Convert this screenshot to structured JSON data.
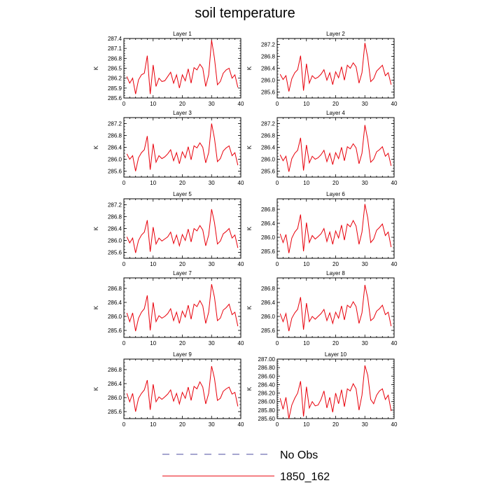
{
  "title": "soil temperature",
  "legend": [
    {
      "label": "No Obs",
      "style": "dashed",
      "color": "#4d4d9f"
    },
    {
      "label": "1850_162",
      "style": "solid",
      "color": "#e8000b"
    }
  ],
  "chart_data": [
    {
      "type": "line",
      "title": "Layer 1",
      "xlabel": "",
      "ylabel": "K",
      "xlim": [
        0,
        40
      ],
      "ylim": [
        285.6,
        287.4
      ],
      "xticks": [
        0,
        10,
        20,
        30,
        40
      ],
      "yticks": [
        "285.6",
        "285.9",
        "286.2",
        "286.5",
        "286.8",
        "287.1",
        "287.4"
      ],
      "series": [
        {
          "color": "#e8000b",
          "x": [
            1,
            2,
            3,
            4,
            5,
            6,
            7,
            8,
            9,
            10,
            11,
            12,
            13,
            14,
            15,
            16,
            17,
            18,
            19,
            20,
            21,
            22,
            23,
            24,
            25,
            26,
            27,
            28,
            29,
            30,
            31,
            32,
            33,
            34,
            35,
            36,
            37,
            38,
            39
          ],
          "y": [
            286.25,
            286.05,
            286.2,
            285.72,
            286.15,
            286.3,
            286.35,
            286.88,
            285.72,
            286.6,
            285.95,
            286.2,
            286.1,
            286.12,
            286.25,
            286.38,
            286.05,
            286.3,
            285.9,
            286.3,
            286.12,
            286.48,
            286.05,
            286.52,
            286.45,
            286.62,
            286.5,
            285.95,
            286.3,
            287.35,
            286.8,
            286.0,
            286.1,
            286.35,
            286.45,
            286.5,
            286.2,
            286.3,
            285.92
          ]
        }
      ]
    },
    {
      "type": "line",
      "title": "Layer 2",
      "xlabel": "",
      "ylabel": "K",
      "xlim": [
        0,
        40
      ],
      "ylim": [
        285.4,
        287.4
      ],
      "xticks": [
        0,
        10,
        20,
        30,
        40
      ],
      "yticks": [
        "285.6",
        "286.0",
        "286.4",
        "286.8",
        "287.2"
      ],
      "series": [
        {
          "color": "#e8000b",
          "x": [
            1,
            2,
            3,
            4,
            5,
            6,
            7,
            8,
            9,
            10,
            11,
            12,
            13,
            14,
            15,
            16,
            17,
            18,
            19,
            20,
            21,
            22,
            23,
            24,
            25,
            26,
            27,
            28,
            29,
            30,
            31,
            32,
            33,
            34,
            35,
            36,
            37,
            38,
            39
          ],
          "y": [
            286.2,
            286.02,
            286.15,
            285.62,
            286.05,
            286.25,
            286.35,
            286.82,
            285.65,
            286.55,
            285.9,
            286.15,
            286.05,
            286.1,
            286.2,
            286.35,
            286.0,
            286.25,
            285.85,
            286.28,
            286.08,
            286.45,
            286.0,
            286.5,
            286.4,
            286.58,
            286.45,
            285.9,
            286.25,
            287.25,
            286.75,
            285.95,
            286.05,
            286.3,
            286.4,
            286.5,
            286.15,
            286.25,
            285.85
          ]
        }
      ]
    },
    {
      "type": "line",
      "title": "Layer 3",
      "xlabel": "",
      "ylabel": "K",
      "xlim": [
        0,
        40
      ],
      "ylim": [
        285.4,
        287.4
      ],
      "xticks": [
        0,
        10,
        20,
        30,
        40
      ],
      "yticks": [
        "285.6",
        "286.0",
        "286.4",
        "286.8",
        "287.2"
      ],
      "series": [
        {
          "color": "#e8000b",
          "x": [
            1,
            2,
            3,
            4,
            5,
            6,
            7,
            8,
            9,
            10,
            11,
            12,
            13,
            14,
            15,
            16,
            17,
            18,
            19,
            20,
            21,
            22,
            23,
            24,
            25,
            26,
            27,
            28,
            29,
            30,
            31,
            32,
            33,
            34,
            35,
            36,
            37,
            38,
            39
          ],
          "y": [
            286.18,
            286.0,
            286.12,
            285.6,
            286.05,
            286.22,
            286.32,
            286.78,
            285.65,
            286.52,
            285.9,
            286.12,
            286.02,
            286.08,
            286.18,
            286.32,
            285.95,
            286.22,
            285.85,
            286.25,
            286.05,
            286.42,
            285.98,
            286.45,
            286.38,
            286.55,
            286.4,
            285.88,
            286.22,
            287.2,
            286.7,
            285.92,
            286.02,
            286.28,
            286.38,
            286.45,
            286.12,
            286.22,
            285.8
          ]
        }
      ]
    },
    {
      "type": "line",
      "title": "Layer 4",
      "xlabel": "",
      "ylabel": "K",
      "xlim": [
        0,
        40
      ],
      "ylim": [
        285.4,
        287.4
      ],
      "xticks": [
        0,
        10,
        20,
        30,
        40
      ],
      "yticks": [
        "285.6",
        "286.0",
        "286.4",
        "286.8",
        "287.2"
      ],
      "series": [
        {
          "color": "#e8000b",
          "x": [
            1,
            2,
            3,
            4,
            5,
            6,
            7,
            8,
            9,
            10,
            11,
            12,
            13,
            14,
            15,
            16,
            17,
            18,
            19,
            20,
            21,
            22,
            23,
            24,
            25,
            26,
            27,
            28,
            29,
            30,
            31,
            32,
            33,
            34,
            35,
            36,
            37,
            38,
            39
          ],
          "y": [
            286.15,
            285.95,
            286.1,
            285.58,
            286.02,
            286.2,
            286.3,
            286.72,
            285.62,
            286.48,
            285.88,
            286.1,
            286.0,
            286.05,
            286.15,
            286.3,
            285.92,
            286.2,
            285.82,
            286.22,
            286.02,
            286.4,
            285.95,
            286.42,
            286.35,
            286.52,
            286.38,
            285.85,
            286.2,
            287.15,
            286.65,
            285.9,
            286.0,
            286.25,
            286.32,
            286.42,
            286.1,
            286.2,
            285.78
          ]
        }
      ]
    },
    {
      "type": "line",
      "title": "Layer 5",
      "xlabel": "",
      "ylabel": "K",
      "xlim": [
        0,
        40
      ],
      "ylim": [
        285.4,
        287.4
      ],
      "xticks": [
        0,
        10,
        20,
        30,
        40
      ],
      "yticks": [
        "285.6",
        "286.0",
        "286.4",
        "286.8",
        "287.2"
      ],
      "series": [
        {
          "color": "#e8000b",
          "x": [
            1,
            2,
            3,
            4,
            5,
            6,
            7,
            8,
            9,
            10,
            11,
            12,
            13,
            14,
            15,
            16,
            17,
            18,
            19,
            20,
            21,
            22,
            23,
            24,
            25,
            26,
            27,
            28,
            29,
            30,
            31,
            32,
            33,
            34,
            35,
            36,
            37,
            38,
            39
          ],
          "y": [
            286.12,
            285.92,
            286.08,
            285.58,
            286.0,
            286.18,
            286.28,
            286.68,
            285.62,
            286.45,
            285.88,
            286.08,
            285.98,
            286.05,
            286.12,
            286.28,
            285.9,
            286.18,
            285.82,
            286.2,
            286.0,
            286.38,
            285.95,
            286.4,
            286.32,
            286.5,
            286.35,
            285.82,
            286.18,
            287.05,
            286.6,
            285.88,
            285.98,
            286.22,
            286.3,
            286.4,
            286.08,
            286.18,
            285.75
          ]
        }
      ]
    },
    {
      "type": "line",
      "title": "Layer 6",
      "xlabel": "",
      "ylabel": "K",
      "xlim": [
        0,
        40
      ],
      "ylim": [
        285.4,
        287.1
      ],
      "xticks": [
        0,
        10,
        20,
        30,
        40
      ],
      "yticks": [
        "285.6",
        "286.0",
        "286.4",
        "286.8"
      ],
      "series": [
        {
          "color": "#e8000b",
          "x": [
            1,
            2,
            3,
            4,
            5,
            6,
            7,
            8,
            9,
            10,
            11,
            12,
            13,
            14,
            15,
            16,
            17,
            18,
            19,
            20,
            21,
            22,
            23,
            24,
            25,
            26,
            27,
            28,
            29,
            30,
            31,
            32,
            33,
            34,
            35,
            36,
            37,
            38,
            39
          ],
          "y": [
            286.1,
            285.85,
            286.08,
            285.55,
            285.98,
            286.15,
            286.25,
            286.65,
            285.6,
            286.42,
            285.85,
            286.05,
            285.95,
            286.02,
            286.1,
            286.25,
            285.88,
            286.15,
            285.8,
            286.18,
            285.98,
            286.35,
            285.92,
            286.38,
            286.3,
            286.48,
            286.32,
            285.8,
            286.15,
            286.95,
            286.55,
            285.85,
            285.95,
            286.2,
            286.28,
            286.38,
            286.05,
            286.15,
            285.72
          ]
        }
      ]
    },
    {
      "type": "line",
      "title": "Layer 7",
      "xlabel": "",
      "ylabel": "K",
      "xlim": [
        0,
        40
      ],
      "ylim": [
        285.4,
        287.1
      ],
      "xticks": [
        0,
        10,
        20,
        30,
        40
      ],
      "yticks": [
        "285.6",
        "286.0",
        "286.4",
        "286.8"
      ],
      "series": [
        {
          "color": "#e8000b",
          "x": [
            1,
            2,
            3,
            4,
            5,
            6,
            7,
            8,
            9,
            10,
            11,
            12,
            13,
            14,
            15,
            16,
            17,
            18,
            19,
            20,
            21,
            22,
            23,
            24,
            25,
            26,
            27,
            28,
            29,
            30,
            31,
            32,
            33,
            34,
            35,
            36,
            37,
            38,
            39
          ],
          "y": [
            286.1,
            285.85,
            286.1,
            285.58,
            285.95,
            286.12,
            286.22,
            286.6,
            285.6,
            286.4,
            285.85,
            286.02,
            285.95,
            286.0,
            286.08,
            286.22,
            285.88,
            286.12,
            285.8,
            286.15,
            285.98,
            286.32,
            285.92,
            286.35,
            286.28,
            286.45,
            286.3,
            285.8,
            286.12,
            286.92,
            286.55,
            285.88,
            285.95,
            286.18,
            286.25,
            286.35,
            286.05,
            286.12,
            285.72
          ]
        }
      ]
    },
    {
      "type": "line",
      "title": "Layer 8",
      "xlabel": "",
      "ylabel": "K",
      "xlim": [
        0,
        40
      ],
      "ylim": [
        285.4,
        287.1
      ],
      "xticks": [
        0,
        10,
        20,
        30,
        40
      ],
      "yticks": [
        "285.6",
        "286.0",
        "286.4",
        "286.8"
      ],
      "series": [
        {
          "color": "#e8000b",
          "x": [
            1,
            2,
            3,
            4,
            5,
            6,
            7,
            8,
            9,
            10,
            11,
            12,
            13,
            14,
            15,
            16,
            17,
            18,
            19,
            20,
            21,
            22,
            23,
            24,
            25,
            26,
            27,
            28,
            29,
            30,
            31,
            32,
            33,
            34,
            35,
            36,
            37,
            38,
            39
          ],
          "y": [
            286.08,
            285.85,
            286.08,
            285.58,
            285.95,
            286.1,
            286.2,
            286.55,
            285.62,
            286.38,
            285.85,
            286.0,
            285.92,
            286.0,
            286.08,
            286.2,
            285.88,
            286.1,
            285.8,
            286.12,
            285.95,
            286.3,
            285.9,
            286.32,
            286.25,
            286.42,
            286.28,
            285.8,
            286.1,
            286.9,
            286.52,
            285.88,
            285.95,
            286.15,
            286.22,
            286.32,
            286.05,
            286.12,
            285.72
          ]
        }
      ]
    },
    {
      "type": "line",
      "title": "Layer 9",
      "xlabel": "",
      "ylabel": "K",
      "xlim": [
        0,
        40
      ],
      "ylim": [
        285.4,
        287.1
      ],
      "xticks": [
        0,
        10,
        20,
        30,
        40
      ],
      "yticks": [
        "285.6",
        "286.0",
        "286.4",
        "286.8"
      ],
      "series": [
        {
          "color": "#e8000b",
          "x": [
            1,
            2,
            3,
            4,
            5,
            6,
            7,
            8,
            9,
            10,
            11,
            12,
            13,
            14,
            15,
            16,
            17,
            18,
            19,
            20,
            21,
            22,
            23,
            24,
            25,
            26,
            27,
            28,
            29,
            30,
            31,
            32,
            33,
            34,
            35,
            36,
            37,
            38,
            39
          ],
          "y": [
            286.12,
            285.88,
            286.12,
            285.6,
            285.98,
            286.12,
            286.22,
            286.5,
            285.65,
            286.38,
            285.88,
            286.02,
            285.95,
            286.02,
            286.1,
            286.22,
            285.9,
            286.12,
            285.82,
            286.15,
            285.98,
            286.3,
            285.92,
            286.32,
            286.25,
            286.45,
            286.3,
            285.82,
            286.12,
            286.9,
            286.55,
            285.92,
            285.98,
            286.18,
            286.25,
            286.3,
            286.1,
            286.15,
            285.75
          ]
        }
      ]
    },
    {
      "type": "line",
      "title": "Layer 10",
      "xlabel": "",
      "ylabel": "K",
      "xlim": [
        0,
        40
      ],
      "ylim": [
        285.6,
        287.0
      ],
      "xticks": [
        0,
        10,
        20,
        30,
        40
      ],
      "yticks": [
        "285.60",
        "285.80",
        "286.00",
        "286.20",
        "286.40",
        "286.60",
        "286.80",
        "287.00"
      ],
      "series": [
        {
          "color": "#e8000b",
          "x": [
            1,
            2,
            3,
            4,
            5,
            6,
            7,
            8,
            9,
            10,
            11,
            12,
            13,
            14,
            15,
            16,
            17,
            18,
            19,
            20,
            21,
            22,
            23,
            24,
            25,
            26,
            27,
            28,
            29,
            30,
            31,
            32,
            33,
            34,
            35,
            36,
            37,
            38,
            39
          ],
          "y": [
            286.08,
            285.82,
            286.1,
            285.6,
            285.92,
            286.08,
            286.2,
            286.48,
            285.65,
            286.35,
            285.85,
            286.0,
            285.9,
            285.92,
            286.05,
            286.25,
            285.85,
            286.1,
            285.75,
            286.2,
            285.95,
            286.28,
            285.88,
            286.3,
            286.25,
            286.42,
            286.3,
            285.8,
            286.15,
            286.85,
            286.62,
            286.05,
            285.95,
            286.15,
            286.25,
            286.3,
            286.05,
            286.15,
            285.78
          ]
        }
      ]
    }
  ]
}
